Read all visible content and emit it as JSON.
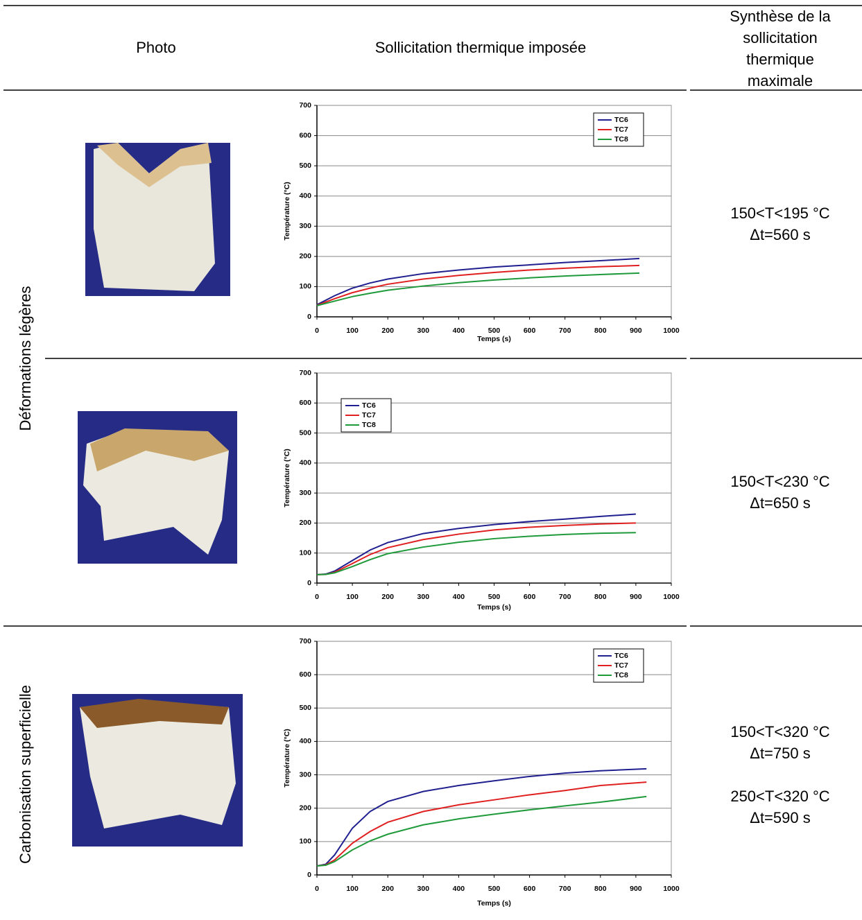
{
  "header": {
    "col1": "Photo",
    "col2": "Sollicitation thermique imposée",
    "col3": "Synthèse de la sollicitation thermique maximale"
  },
  "row_groups": [
    "Déformations légères",
    "Carbonisation superficielle"
  ],
  "rows": [
    {
      "chart_data": {
        "type": "line",
        "xlabel": "Temps (s)",
        "ylabel": "Température (°C)",
        "x": [
          0,
          50,
          100,
          150,
          200,
          300,
          400,
          500,
          600,
          700,
          800,
          910
        ],
        "series": [
          {
            "name": "TC6",
            "color": "#1f1f8f",
            "values": [
              40,
              70,
              95,
              112,
              125,
              143,
              155,
              165,
              172,
              180,
              186,
              193
            ]
          },
          {
            "name": "TC7",
            "color": "#e02020",
            "values": [
              38,
              60,
              80,
              95,
              108,
              125,
              137,
              147,
              155,
              161,
              166,
              170
            ]
          },
          {
            "name": "TC8",
            "color": "#1e9a3a",
            "values": [
              37,
              52,
              67,
              78,
              88,
              102,
              113,
              122,
              129,
              135,
              140,
              145
            ]
          }
        ],
        "xlim": [
          0,
          1000
        ],
        "xticks": [
          0,
          100,
          200,
          300,
          400,
          500,
          600,
          700,
          800,
          900,
          1000
        ],
        "ylim": [
          0,
          700
        ],
        "yticks": [
          0,
          100,
          200,
          300,
          400,
          500,
          600,
          700
        ],
        "grid": true,
        "legend": "upper right"
      },
      "synthesis": [
        "150<T<195 °C",
        "Δt=560 s"
      ]
    },
    {
      "chart_data": {
        "type": "line",
        "xlabel": "Temps (s)",
        "ylabel": "Température (°C)",
        "x": [
          0,
          25,
          50,
          100,
          150,
          200,
          300,
          400,
          500,
          600,
          700,
          800,
          900
        ],
        "series": [
          {
            "name": "TC6",
            "color": "#1f1f8f",
            "values": [
              28,
              30,
              40,
              75,
              110,
              135,
              165,
              182,
              195,
              205,
              213,
              222,
              230
            ]
          },
          {
            "name": "TC7",
            "color": "#e02020",
            "values": [
              28,
              29,
              36,
              65,
              95,
              118,
              145,
              163,
              177,
              186,
              192,
              197,
              200
            ]
          },
          {
            "name": "TC8",
            "color": "#1e9a3a",
            "values": [
              28,
              29,
              34,
              55,
              78,
              98,
              120,
              136,
              148,
              156,
              162,
              166,
              168
            ]
          }
        ],
        "xlim": [
          0,
          1000
        ],
        "xticks": [
          0,
          100,
          200,
          300,
          400,
          500,
          600,
          700,
          800,
          900,
          1000
        ],
        "ylim": [
          0,
          700
        ],
        "yticks": [
          0,
          100,
          200,
          300,
          400,
          500,
          600,
          700
        ],
        "grid": true,
        "legend": "upper left"
      },
      "synthesis": [
        "150<T<230 °C",
        "Δt=650 s"
      ]
    },
    {
      "chart_data": {
        "type": "line",
        "xlabel": "Temps (s)",
        "ylabel": "Température (°C)",
        "x": [
          0,
          25,
          50,
          100,
          150,
          200,
          300,
          400,
          500,
          600,
          700,
          800,
          930
        ],
        "series": [
          {
            "name": "TC6",
            "color": "#1f1f8f",
            "values": [
              27,
              32,
              60,
              140,
              190,
              220,
              250,
              268,
              282,
              295,
              305,
              312,
              318
            ]
          },
          {
            "name": "TC7",
            "color": "#e02020",
            "values": [
              27,
              30,
              45,
              95,
              130,
              158,
              190,
              210,
              225,
              240,
              253,
              268,
              278
            ]
          },
          {
            "name": "TC8",
            "color": "#1e9a3a",
            "values": [
              27,
              29,
              40,
              75,
              102,
              122,
              150,
              168,
              182,
              195,
              207,
              218,
              235
            ]
          }
        ],
        "xlim": [
          0,
          1000
        ],
        "xticks": [
          0,
          100,
          200,
          300,
          400,
          500,
          600,
          700,
          800,
          900,
          1000
        ],
        "ylim": [
          0,
          700
        ],
        "yticks": [
          0,
          100,
          200,
          300,
          400,
          500,
          600,
          700
        ],
        "grid": true,
        "legend": "upper right"
      },
      "synthesis": [
        "150<T<320 °C",
        "Δt=750 s",
        "250<T<320 °C",
        "Δt=590 s"
      ]
    }
  ]
}
